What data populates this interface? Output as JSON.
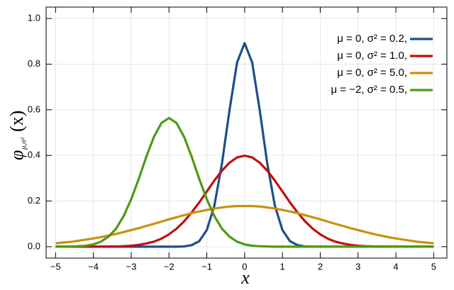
{
  "chart_data": {
    "type": "line",
    "xlabel": "x",
    "ylabel": {
      "symbol": "φ",
      "subscript": "μ,σ²",
      "argument": "(x)"
    },
    "x": [
      -5,
      -4.8,
      -4.6,
      -4.4,
      -4.2,
      -4,
      -3.8,
      -3.6,
      -3.4,
      -3.2,
      -3,
      -2.8,
      -2.6,
      -2.4,
      -2.2,
      -2,
      -1.8,
      -1.6,
      -1.4,
      -1.2,
      -1,
      -0.8,
      -0.6,
      -0.4,
      -0.2,
      0,
      0.2,
      0.4,
      0.6,
      0.8,
      1,
      1.2,
      1.4,
      1.6,
      1.8,
      2,
      2.2,
      2.4,
      2.6,
      2.8,
      3,
      3.2,
      3.4,
      3.6,
      3.8,
      4,
      4.2,
      4.4,
      4.6,
      4.8,
      5
    ],
    "series": [
      {
        "name": "μ = 0,   σ² = 0.2,",
        "color": "#1f4e8c",
        "values": [
          0,
          0,
          0,
          0,
          0,
          0,
          0,
          0,
          0,
          0,
          0,
          0,
          0,
          0,
          0,
          0,
          0,
          0.001,
          0.007,
          0.024,
          0.073,
          0.18,
          0.363,
          0.598,
          0.807,
          0.892,
          0.807,
          0.598,
          0.363,
          0.18,
          0.073,
          0.024,
          0.007,
          0.001,
          0,
          0,
          0,
          0,
          0,
          0,
          0,
          0,
          0,
          0,
          0,
          0,
          0,
          0,
          0,
          0,
          0
        ]
      },
      {
        "name": "μ = 0,   σ² = 1.0,",
        "color": "#c00f0f",
        "values": [
          0,
          0,
          0,
          0,
          0,
          0,
          0,
          0.001,
          0.001,
          0.002,
          0.004,
          0.008,
          0.014,
          0.022,
          0.035,
          0.054,
          0.079,
          0.111,
          0.15,
          0.194,
          0.242,
          0.29,
          0.333,
          0.368,
          0.391,
          0.399,
          0.391,
          0.368,
          0.333,
          0.29,
          0.242,
          0.194,
          0.15,
          0.111,
          0.079,
          0.054,
          0.035,
          0.022,
          0.014,
          0.008,
          0.004,
          0.002,
          0.001,
          0.001,
          0,
          0,
          0,
          0,
          0,
          0,
          0
        ]
      },
      {
        "name": "μ = 0,   σ² = 5.0,",
        "color": "#c8920a",
        "values": [
          0.015,
          0.018,
          0.021,
          0.026,
          0.031,
          0.036,
          0.042,
          0.049,
          0.056,
          0.064,
          0.073,
          0.081,
          0.091,
          0.1,
          0.11,
          0.12,
          0.129,
          0.138,
          0.147,
          0.154,
          0.161,
          0.167,
          0.172,
          0.176,
          0.178,
          0.178,
          0.178,
          0.176,
          0.172,
          0.167,
          0.161,
          0.154,
          0.147,
          0.138,
          0.129,
          0.12,
          0.11,
          0.1,
          0.091,
          0.081,
          0.073,
          0.064,
          0.056,
          0.049,
          0.042,
          0.036,
          0.031,
          0.026,
          0.021,
          0.018,
          0.015
        ]
      },
      {
        "name": "μ = −2,  σ² = 0.5,",
        "color": "#4f9a12",
        "values": [
          0,
          0,
          0.001,
          0.002,
          0.004,
          0.01,
          0.022,
          0.044,
          0.079,
          0.134,
          0.208,
          0.297,
          0.394,
          0.481,
          0.542,
          0.564,
          0.542,
          0.481,
          0.394,
          0.297,
          0.208,
          0.134,
          0.079,
          0.044,
          0.022,
          0.01,
          0.004,
          0.002,
          0.001,
          0,
          0,
          0,
          0,
          0,
          0,
          0,
          0,
          0,
          0,
          0,
          0,
          0,
          0,
          0,
          0,
          0,
          0,
          0,
          0,
          0,
          0
        ]
      }
    ],
    "xlim": [
      -5.25,
      5.35
    ],
    "ylim": [
      -0.05,
      1.05
    ],
    "xticks": [
      {
        "value": -5,
        "label": "−5"
      },
      {
        "value": -4,
        "label": "−4"
      },
      {
        "value": -3,
        "label": "−3"
      },
      {
        "value": -2,
        "label": "−2"
      },
      {
        "value": -1,
        "label": "−1"
      },
      0,
      1,
      2,
      3,
      4,
      5
    ],
    "yticks": [
      {
        "value": 0,
        "label": "0.0"
      },
      0.2,
      0.4,
      0.6,
      0.8,
      {
        "value": 1,
        "label": "1.0"
      }
    ],
    "grid": true,
    "legend": "upper-right"
  }
}
